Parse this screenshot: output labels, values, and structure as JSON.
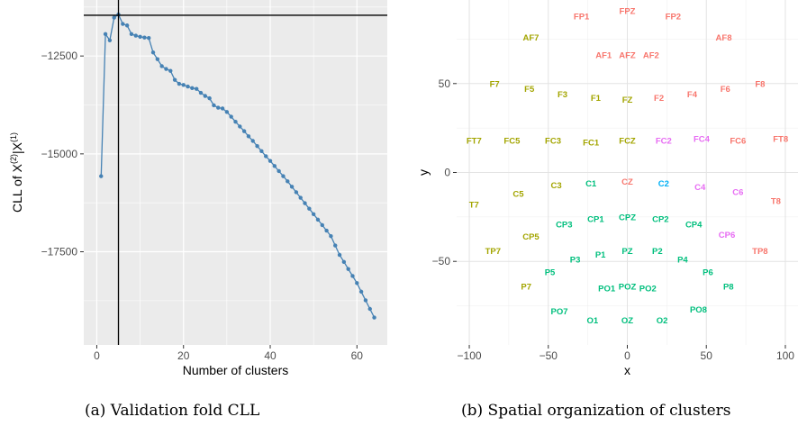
{
  "chart_data": [
    {
      "type": "line",
      "caption": "(a) Validation fold CLL",
      "xlabel": "Number of clusters",
      "ylabel_main": "CLL of X",
      "ylabel_sup1": "(2)",
      "ylabel_mid": "|X",
      "ylabel_sup2": "(1)",
      "xlim": [
        -3,
        67
      ],
      "ylim": [
        -19880,
        -11070
      ],
      "x_ticks": [
        0,
        20,
        40,
        60
      ],
      "x_tick_labels": [
        "0",
        "20",
        "40",
        "60"
      ],
      "y_ticks": [
        -12500,
        -15000,
        -17500
      ],
      "y_tick_labels": [
        "−12500",
        "−15000",
        "−17500"
      ],
      "grid": true,
      "panel_background": "#ebebeb",
      "line_color": "#4682b4",
      "reference_lines": {
        "vline_x": 5,
        "hline_y": -11460
      },
      "x": [
        1,
        2,
        3,
        4,
        5,
        6,
        7,
        8,
        9,
        10,
        11,
        12,
        13,
        14,
        15,
        16,
        17,
        18,
        19,
        20,
        21,
        22,
        23,
        24,
        25,
        26,
        27,
        28,
        29,
        30,
        31,
        32,
        33,
        34,
        35,
        36,
        37,
        38,
        39,
        40,
        41,
        42,
        43,
        44,
        45,
        46,
        47,
        48,
        49,
        50,
        51,
        52,
        53,
        54,
        55,
        56,
        57,
        58,
        59,
        60,
        61,
        62,
        63,
        64
      ],
      "y": [
        -15570,
        -11940,
        -12100,
        -11520,
        -11440,
        -11680,
        -11720,
        -11940,
        -11980,
        -12010,
        -12030,
        -12040,
        -12410,
        -12580,
        -12760,
        -12830,
        -12880,
        -13110,
        -13210,
        -13240,
        -13280,
        -13320,
        -13340,
        -13440,
        -13520,
        -13580,
        -13760,
        -13820,
        -13840,
        -13930,
        -14050,
        -14180,
        -14300,
        -14420,
        -14550,
        -14670,
        -14800,
        -14930,
        -15060,
        -15180,
        -15310,
        -15440,
        -15570,
        -15700,
        -15840,
        -15980,
        -16120,
        -16260,
        -16400,
        -16540,
        -16680,
        -16820,
        -16960,
        -17100,
        -17340,
        -17580,
        -17760,
        -17940,
        -18120,
        -18300,
        -18520,
        -18740,
        -18960,
        -19180
      ]
    },
    {
      "type": "scatter",
      "caption": "(b) Spatial organization of clusters",
      "xlabel": "x",
      "ylabel": "y",
      "xlim": [
        -108,
        108
      ],
      "ylim": [
        -97,
        97
      ],
      "x_ticks": [
        -100,
        -50,
        0,
        50,
        100
      ],
      "x_tick_labels": [
        "−100",
        "−50",
        "0",
        "50",
        "100"
      ],
      "y_ticks": [
        -50,
        0,
        50
      ],
      "y_tick_labels": [
        "−50",
        "0",
        "50"
      ],
      "grid": true,
      "panel_background": "#ffffff",
      "cluster_colors": {
        "1": "#f8766d",
        "2": "#a3a500",
        "3": "#00bf7d",
        "4": "#00b0f6",
        "5": "#e76bf3"
      },
      "points": [
        {
          "label": "FPZ",
          "x": 0,
          "y": 91,
          "cluster": 1
        },
        {
          "label": "FP1",
          "x": -29,
          "y": 88,
          "cluster": 1
        },
        {
          "label": "FP2",
          "x": 29,
          "y": 88,
          "cluster": 1
        },
        {
          "label": "AF7",
          "x": -61,
          "y": 76,
          "cluster": 2
        },
        {
          "label": "AF8",
          "x": 61,
          "y": 76,
          "cluster": 1
        },
        {
          "label": "AF1",
          "x": -15,
          "y": 66,
          "cluster": 1
        },
        {
          "label": "AFZ",
          "x": 0,
          "y": 66,
          "cluster": 1
        },
        {
          "label": "AF2",
          "x": 15,
          "y": 66,
          "cluster": 1
        },
        {
          "label": "F7",
          "x": -84,
          "y": 50,
          "cluster": 2
        },
        {
          "label": "F8",
          "x": 84,
          "y": 50,
          "cluster": 1
        },
        {
          "label": "F5",
          "x": -62,
          "y": 47,
          "cluster": 2
        },
        {
          "label": "F6",
          "x": 62,
          "y": 47,
          "cluster": 1
        },
        {
          "label": "F3",
          "x": -41,
          "y": 44,
          "cluster": 2
        },
        {
          "label": "F4",
          "x": 41,
          "y": 44,
          "cluster": 1
        },
        {
          "label": "F1",
          "x": -20,
          "y": 42,
          "cluster": 2
        },
        {
          "label": "FZ",
          "x": 0,
          "y": 41,
          "cluster": 2
        },
        {
          "label": "F2",
          "x": 20,
          "y": 42,
          "cluster": 1
        },
        {
          "label": "FT7",
          "x": -97,
          "y": 18,
          "cluster": 2
        },
        {
          "label": "FC5",
          "x": -73,
          "y": 18,
          "cluster": 2
        },
        {
          "label": "FC3",
          "x": -47,
          "y": 18,
          "cluster": 2
        },
        {
          "label": "FC1",
          "x": -23,
          "y": 17,
          "cluster": 2
        },
        {
          "label": "FCZ",
          "x": 0,
          "y": 18,
          "cluster": 2
        },
        {
          "label": "FC2",
          "x": 23,
          "y": 18,
          "cluster": 5
        },
        {
          "label": "FC4",
          "x": 47,
          "y": 19,
          "cluster": 5
        },
        {
          "label": "FC6",
          "x": 70,
          "y": 18,
          "cluster": 1
        },
        {
          "label": "FT8",
          "x": 97,
          "y": 19,
          "cluster": 1
        },
        {
          "label": "T7",
          "x": -97,
          "y": -18,
          "cluster": 2
        },
        {
          "label": "C5",
          "x": -69,
          "y": -12,
          "cluster": 2
        },
        {
          "label": "C3",
          "x": -45,
          "y": -7,
          "cluster": 2
        },
        {
          "label": "C1",
          "x": -23,
          "y": -6,
          "cluster": 3
        },
        {
          "label": "CZ",
          "x": 0,
          "y": -5,
          "cluster": 1
        },
        {
          "label": "C2",
          "x": 23,
          "y": -6,
          "cluster": 4
        },
        {
          "label": "C4",
          "x": 46,
          "y": -8,
          "cluster": 5
        },
        {
          "label": "C6",
          "x": 70,
          "y": -11,
          "cluster": 5
        },
        {
          "label": "T8",
          "x": 94,
          "y": -16,
          "cluster": 1
        },
        {
          "label": "CP1",
          "x": -20,
          "y": -26,
          "cluster": 3
        },
        {
          "label": "CPZ",
          "x": 0,
          "y": -25,
          "cluster": 3
        },
        {
          "label": "CP2",
          "x": 21,
          "y": -26,
          "cluster": 3
        },
        {
          "label": "CP3",
          "x": -40,
          "y": -29,
          "cluster": 3
        },
        {
          "label": "CP4",
          "x": 42,
          "y": -29,
          "cluster": 3
        },
        {
          "label": "CP5",
          "x": -61,
          "y": -36,
          "cluster": 2
        },
        {
          "label": "CP6",
          "x": 63,
          "y": -35,
          "cluster": 5
        },
        {
          "label": "TP7",
          "x": -85,
          "y": -44,
          "cluster": 2
        },
        {
          "label": "TP8",
          "x": 84,
          "y": -44,
          "cluster": 1
        },
        {
          "label": "P1",
          "x": -17,
          "y": -46,
          "cluster": 3
        },
        {
          "label": "PZ",
          "x": 0,
          "y": -44,
          "cluster": 3
        },
        {
          "label": "P2",
          "x": 19,
          "y": -44,
          "cluster": 3
        },
        {
          "label": "P3",
          "x": -33,
          "y": -49,
          "cluster": 3
        },
        {
          "label": "P4",
          "x": 35,
          "y": -49,
          "cluster": 3
        },
        {
          "label": "P5",
          "x": -49,
          "y": -56,
          "cluster": 3
        },
        {
          "label": "P6",
          "x": 51,
          "y": -56,
          "cluster": 3
        },
        {
          "label": "P7",
          "x": -64,
          "y": -64,
          "cluster": 2
        },
        {
          "label": "P8",
          "x": 64,
          "y": -64,
          "cluster": 3
        },
        {
          "label": "PO1",
          "x": -13,
          "y": -65,
          "cluster": 3
        },
        {
          "label": "POZ",
          "x": 0,
          "y": -64,
          "cluster": 3
        },
        {
          "label": "PO2",
          "x": 13,
          "y": -65,
          "cluster": 3
        },
        {
          "label": "PO7",
          "x": -43,
          "y": -78,
          "cluster": 3
        },
        {
          "label": "PO8",
          "x": 45,
          "y": -77,
          "cluster": 3
        },
        {
          "label": "O1",
          "x": -22,
          "y": -83,
          "cluster": 3
        },
        {
          "label": "OZ",
          "x": 0,
          "y": -83,
          "cluster": 3
        },
        {
          "label": "O2",
          "x": 22,
          "y": -83,
          "cluster": 3
        }
      ]
    }
  ]
}
